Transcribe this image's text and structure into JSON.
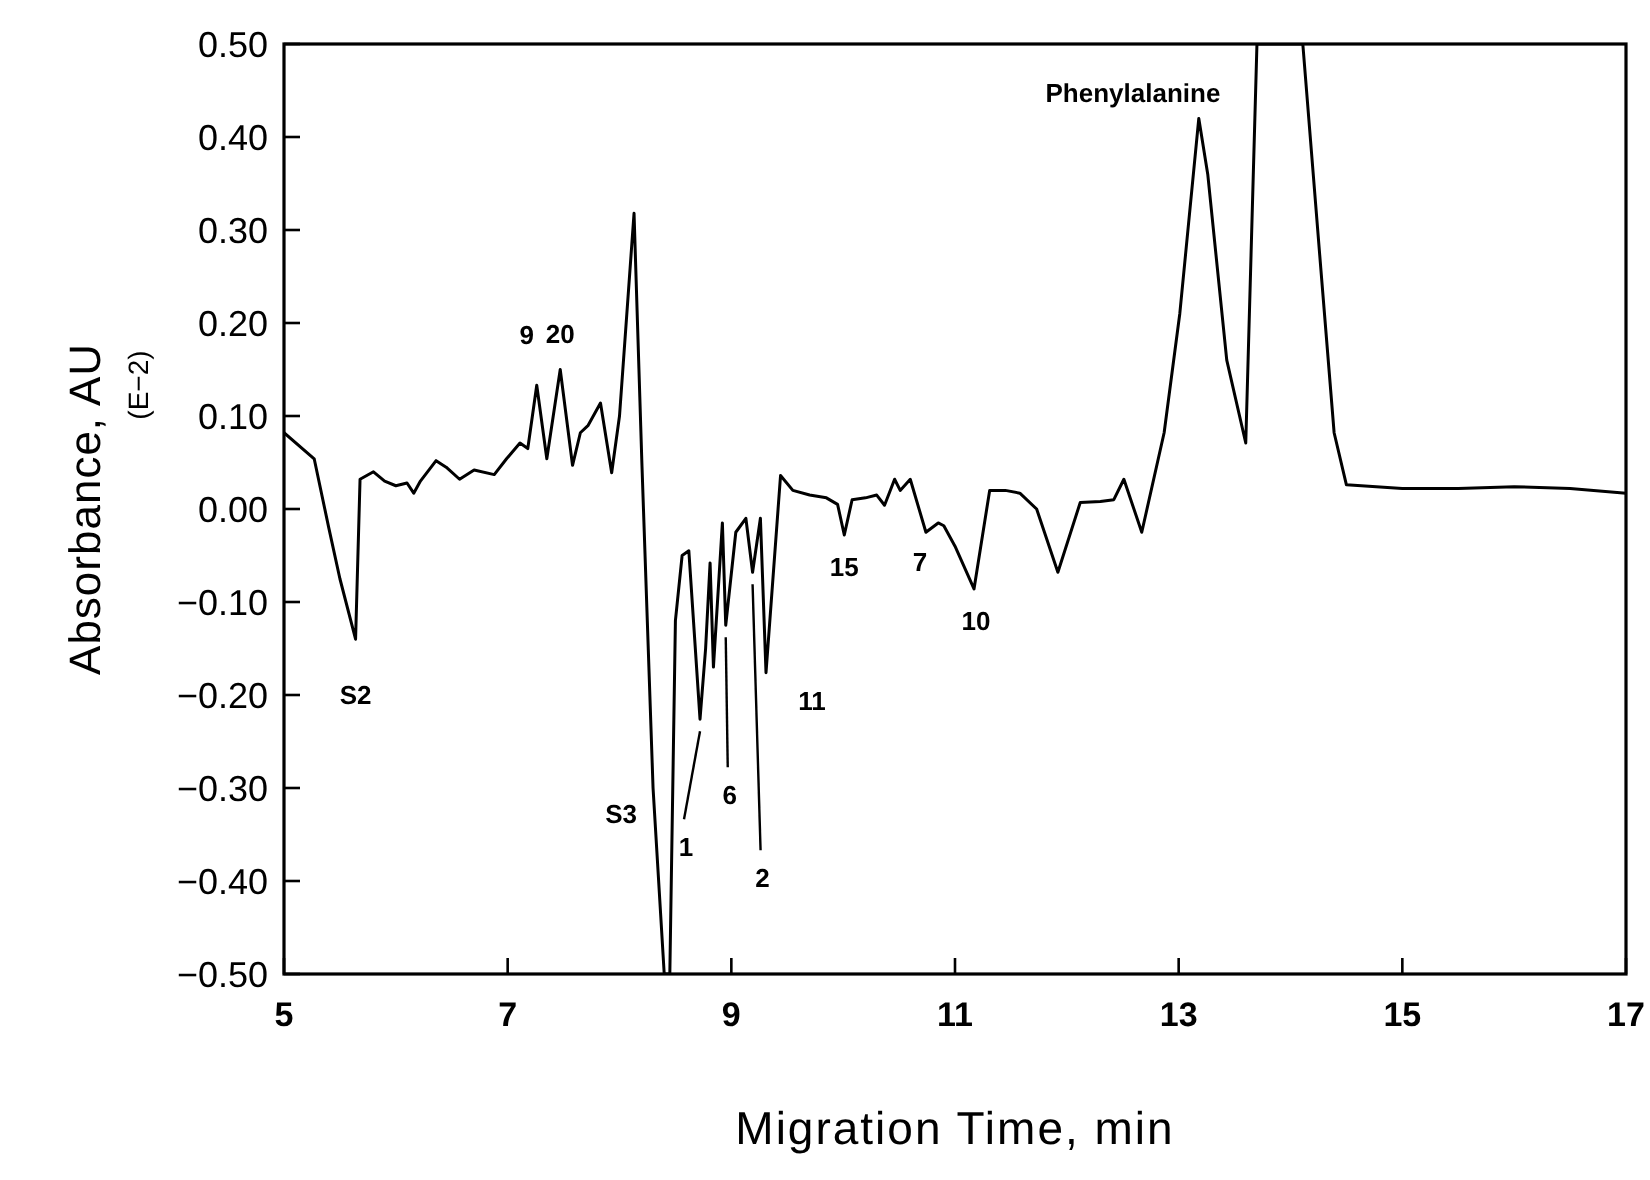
{
  "chart_data": {
    "type": "line",
    "xlabel": "Migration Time, min",
    "ylabel": "Absorbance, AU\n(E−2)",
    "xlim": [
      5,
      17
    ],
    "xticks": [
      5,
      7,
      9,
      11,
      13,
      15,
      17
    ],
    "ylim": [
      -0.5,
      0.5
    ],
    "yticks": [
      {
        "value": -0.5,
        "label": "−0.50"
      },
      {
        "value": -0.4,
        "label": "−0.40"
      },
      {
        "value": -0.3,
        "label": "−0.30"
      },
      {
        "value": -0.2,
        "label": "−0.20"
      },
      {
        "value": -0.1,
        "label": "−0.10"
      },
      {
        "value": 0,
        "label": "0.00"
      },
      {
        "value": 0.1,
        "label": "0.10"
      },
      {
        "value": 0.2,
        "label": "0.20"
      },
      {
        "value": 0.3,
        "label": "0.30"
      },
      {
        "value": 0.4,
        "label": "0.40"
      },
      {
        "value": 0.5,
        "label": "0.50"
      }
    ],
    "grid": false,
    "marker": "none",
    "line_style": "solid",
    "series": [
      {
        "color": "#000000",
        "x": [
          5.0,
          5.27,
          5.4,
          5.5,
          5.64,
          5.68,
          5.8,
          5.9,
          6.0,
          6.1,
          6.16,
          6.22,
          6.36,
          6.45,
          6.57,
          6.7,
          6.88,
          6.99,
          7.11,
          7.18,
          7.26,
          7.35,
          7.47,
          7.58,
          7.65,
          7.72,
          7.83,
          7.93,
          8.0,
          8.13,
          8.2,
          8.3,
          8.4,
          8.45,
          8.5,
          8.56,
          8.62,
          8.72,
          8.77,
          8.81,
          8.84,
          8.92,
          8.95,
          9.04,
          9.13,
          9.19,
          9.26,
          9.31,
          9.44,
          9.55,
          9.7,
          9.85,
          9.95,
          10.01,
          10.08,
          10.2,
          10.3,
          10.37,
          10.46,
          10.51,
          10.6,
          10.74,
          10.85,
          10.9,
          11.0,
          11.17,
          11.31,
          11.45,
          11.58,
          11.73,
          11.92,
          12.12,
          12.3,
          12.42,
          12.51,
          12.67,
          12.87,
          13.01,
          13.18,
          13.26,
          13.43,
          13.6,
          13.7,
          14.11,
          14.27,
          14.39,
          14.5,
          15.0,
          15.5,
          16.0,
          16.5,
          17.0
        ],
        "values": [
          0.082,
          0.054,
          -0.02,
          -0.075,
          -0.14,
          0.032,
          0.04,
          0.03,
          0.025,
          0.028,
          0.017,
          0.03,
          0.052,
          0.045,
          0.032,
          0.042,
          0.037,
          0.054,
          0.071,
          0.065,
          0.133,
          0.054,
          0.15,
          0.047,
          0.082,
          0.09,
          0.114,
          0.039,
          0.1,
          0.318,
          0.05,
          -0.3,
          -0.5,
          -0.5,
          -0.12,
          -0.05,
          -0.045,
          -0.226,
          -0.15,
          -0.058,
          -0.17,
          -0.015,
          -0.125,
          -0.025,
          -0.01,
          -0.068,
          -0.01,
          -0.176,
          0.036,
          0.02,
          0.015,
          0.012,
          0.005,
          -0.028,
          0.01,
          0.012,
          0.015,
          0.004,
          0.032,
          0.02,
          0.032,
          -0.025,
          -0.015,
          -0.018,
          -0.04,
          -0.086,
          0.02,
          0.02,
          0.017,
          0.0,
          -0.068,
          0.007,
          0.008,
          0.01,
          0.032,
          -0.025,
          0.082,
          0.21,
          0.42,
          0.36,
          0.16,
          0.071,
          0.5,
          0.5,
          0.26,
          0.082,
          0.026,
          0.022,
          0.022,
          0.024,
          0.022,
          0.017
        ]
      }
    ],
    "annotations": [
      {
        "text": "S2",
        "x": 5.64,
        "y": -0.14
      },
      {
        "text": "9",
        "x": 7.26,
        "y": 0.133
      },
      {
        "text": "20",
        "x": 7.47,
        "y": 0.15
      },
      {
        "text": "Phenylalanine",
        "x": 13.7,
        "y": 0.45
      },
      {
        "text": "S3",
        "x": 8.3,
        "y": -0.3
      },
      {
        "text": "1",
        "x": 8.72,
        "y": -0.226
      },
      {
        "text": "6",
        "x": 8.95,
        "y": -0.125
      },
      {
        "text": "2",
        "x": 9.19,
        "y": -0.068
      },
      {
        "text": "11",
        "x": 9.31,
        "y": -0.176
      },
      {
        "text": "15",
        "x": 10.01,
        "y": -0.028
      },
      {
        "text": "7",
        "x": 10.74,
        "y": -0.025
      },
      {
        "text": "10",
        "x": 11.17,
        "y": -0.086
      }
    ]
  }
}
